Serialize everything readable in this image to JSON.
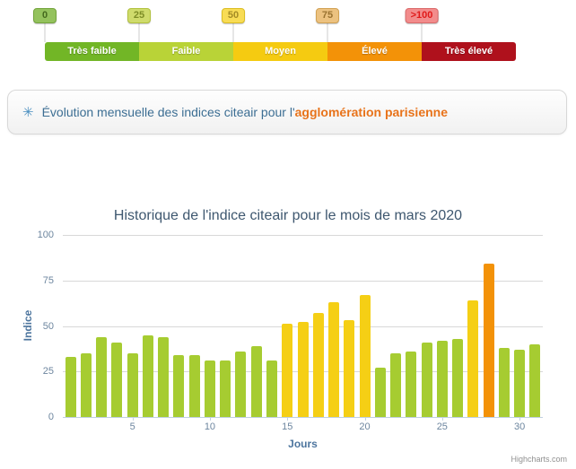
{
  "scale": {
    "badges": [
      {
        "label": "0",
        "bg": "#94c25d",
        "border": "#74a53c",
        "text": "#44691d"
      },
      {
        "label": "25",
        "bg": "#cfdb6c",
        "border": "#b2c23e",
        "text": "#7e8d26"
      },
      {
        "label": "50",
        "bg": "#f8dc55",
        "border": "#dcbe23",
        "text": "#a48b25"
      },
      {
        "label": "75",
        "bg": "#ecc280",
        "border": "#d2a254",
        "text": "#9a7331"
      },
      {
        "label": ">100",
        "bg": "#f28c8c",
        "border": "#db6b6b",
        "text": "#e01a1a"
      }
    ],
    "bands": [
      {
        "label": "Très faible",
        "color": "#72b626"
      },
      {
        "label": "Faible",
        "color": "#b9d337"
      },
      {
        "label": "Moyen",
        "color": "#f5cb11"
      },
      {
        "label": "Élevé",
        "color": "#f39208"
      },
      {
        "label": "Très élevé",
        "color": "#af111c"
      }
    ]
  },
  "info": {
    "icon": "✳",
    "text_blue": "Évolution mensuelle des indices citeair pour l'",
    "text_orange": "agglomération parisienne"
  },
  "chart_data": {
    "type": "bar",
    "title": "Historique de l'indice citeair pour le mois de mars 2020",
    "xlabel": "Jours",
    "ylabel": "Indice",
    "x": [
      1,
      2,
      3,
      4,
      5,
      6,
      7,
      8,
      9,
      10,
      11,
      12,
      13,
      14,
      15,
      16,
      17,
      18,
      19,
      20,
      21,
      22,
      23,
      24,
      25,
      26,
      27,
      28,
      29,
      30,
      31
    ],
    "values": [
      33,
      35,
      44,
      41,
      35,
      45,
      44,
      34,
      34,
      31,
      31,
      36,
      39,
      31,
      51,
      52,
      57,
      63,
      53,
      67,
      27,
      35,
      36,
      41,
      42,
      43,
      64,
      84,
      38,
      37,
      40
    ],
    "ylim": [
      0,
      100
    ],
    "yticks": [
      0,
      25,
      50,
      75,
      100
    ],
    "xticks": [
      5,
      10,
      15,
      20,
      25,
      30
    ],
    "bar_colors": {
      "low": "#a6cc31",
      "mid": "#f5cf15",
      "high": "#f39208"
    },
    "color_thresholds": {
      "mid_min": 50,
      "high_min": 75
    },
    "grid": true,
    "legend_position": "none",
    "credit": "Highcharts.com"
  }
}
